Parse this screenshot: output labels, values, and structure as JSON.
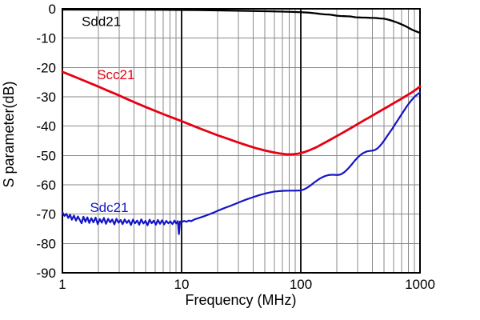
{
  "chart_data": {
    "type": "line",
    "x_scale": "log",
    "xlabel": "Frequency (MHz)",
    "ylabel": "S parameter(dB)",
    "xlim": [
      1,
      1000
    ],
    "ylim": [
      -90,
      0
    ],
    "x_ticks": [
      1,
      10,
      100,
      1000
    ],
    "x_tick_labels": [
      "1",
      "10",
      "100",
      "1000"
    ],
    "y_ticks": [
      0,
      -10,
      -20,
      -30,
      -40,
      -50,
      -60,
      -70,
      -80,
      -90
    ],
    "y_tick_labels": [
      "0",
      "-10",
      "-20",
      "-30",
      "-40",
      "-50",
      "-60",
      "-70",
      "-80",
      "-90"
    ],
    "grid": {
      "minor_color": "#8a8a8a",
      "major_color": "#1a1a1a",
      "frame_color": "#000000",
      "major_vertical_at": [
        10,
        100
      ]
    },
    "legend_position": "inline-labels",
    "series": [
      {
        "name": "Sdd21",
        "color": "#000000",
        "stroke_width": 2.3,
        "label_anchor": {
          "f": 1.45,
          "db": -4.2
        },
        "points": [
          [
            1,
            -0.25
          ],
          [
            2,
            -0.3
          ],
          [
            4,
            -0.3
          ],
          [
            7,
            -0.35
          ],
          [
            10,
            -0.4
          ],
          [
            14,
            -0.45
          ],
          [
            20,
            -0.55
          ],
          [
            28,
            -0.65
          ],
          [
            40,
            -0.75
          ],
          [
            55,
            -0.85
          ],
          [
            70,
            -0.95
          ],
          [
            85,
            -1.05
          ],
          [
            100,
            -1.15
          ],
          [
            110,
            -1.25
          ],
          [
            120,
            -1.35
          ],
          [
            130,
            -1.5
          ],
          [
            140,
            -1.65
          ],
          [
            150,
            -1.8
          ],
          [
            160,
            -1.9
          ],
          [
            170,
            -1.95
          ],
          [
            180,
            -2.05
          ],
          [
            190,
            -2.2
          ],
          [
            200,
            -2.35
          ],
          [
            215,
            -2.45
          ],
          [
            230,
            -2.5
          ],
          [
            245,
            -2.55
          ],
          [
            260,
            -2.6
          ],
          [
            275,
            -2.75
          ],
          [
            290,
            -2.9
          ],
          [
            310,
            -2.95
          ],
          [
            330,
            -3.0
          ],
          [
            350,
            -3.0
          ],
          [
            370,
            -3.05
          ],
          [
            390,
            -3.1
          ],
          [
            410,
            -3.1
          ],
          [
            430,
            -3.15
          ],
          [
            450,
            -3.25
          ],
          [
            470,
            -3.3
          ],
          [
            490,
            -3.35
          ],
          [
            510,
            -3.45
          ],
          [
            530,
            -3.6
          ],
          [
            560,
            -3.85
          ],
          [
            590,
            -4.15
          ],
          [
            620,
            -4.45
          ],
          [
            660,
            -4.85
          ],
          [
            700,
            -5.3
          ],
          [
            740,
            -5.75
          ],
          [
            780,
            -6.2
          ],
          [
            820,
            -6.7
          ],
          [
            860,
            -7.15
          ],
          [
            900,
            -7.5
          ],
          [
            950,
            -7.85
          ],
          [
            1000,
            -8.2
          ]
        ]
      },
      {
        "name": "Scc21",
        "color": "#e60012",
        "stroke_width": 2.8,
        "label_anchor": {
          "f": 1.95,
          "db": -22.3
        },
        "points": [
          [
            1,
            -21.5
          ],
          [
            1.2,
            -22.8
          ],
          [
            1.4,
            -23.9
          ],
          [
            1.7,
            -25.3
          ],
          [
            2,
            -26.5
          ],
          [
            2.4,
            -27.9
          ],
          [
            2.9,
            -29.3
          ],
          [
            3.5,
            -30.8
          ],
          [
            4.2,
            -32.2
          ],
          [
            5,
            -33.5
          ],
          [
            6,
            -34.8
          ],
          [
            7,
            -35.9
          ],
          [
            8.5,
            -37.2
          ],
          [
            10,
            -38.3
          ],
          [
            12,
            -39.6
          ],
          [
            14,
            -40.7
          ],
          [
            17,
            -42.0
          ],
          [
            20,
            -43.1
          ],
          [
            24,
            -44.2
          ],
          [
            29,
            -45.4
          ],
          [
            35,
            -46.5
          ],
          [
            42,
            -47.5
          ],
          [
            50,
            -48.3
          ],
          [
            58,
            -48.9
          ],
          [
            66,
            -49.3
          ],
          [
            75,
            -49.6
          ],
          [
            85,
            -49.6
          ],
          [
            95,
            -49.4
          ],
          [
            100,
            -49.2
          ],
          [
            110,
            -48.7
          ],
          [
            120,
            -48.1
          ],
          [
            135,
            -47.2
          ],
          [
            150,
            -46.2
          ],
          [
            170,
            -45.0
          ],
          [
            190,
            -43.9
          ],
          [
            215,
            -42.7
          ],
          [
            240,
            -41.6
          ],
          [
            270,
            -40.4
          ],
          [
            300,
            -39.3
          ],
          [
            340,
            -38.0
          ],
          [
            380,
            -36.9
          ],
          [
            430,
            -35.6
          ],
          [
            480,
            -34.5
          ],
          [
            540,
            -33.3
          ],
          [
            600,
            -32.2
          ],
          [
            670,
            -31.1
          ],
          [
            750,
            -29.9
          ],
          [
            840,
            -28.7
          ],
          [
            920,
            -27.6
          ],
          [
            1000,
            -26.5
          ]
        ]
      },
      {
        "name": "Sdc21",
        "color": "#1414c8",
        "stroke_width": 2.2,
        "label_anchor": {
          "f": 1.7,
          "db": -67.6
        },
        "points": [
          [
            1.0,
            -69.3
          ],
          [
            1.04,
            -70.6
          ],
          [
            1.08,
            -69.9
          ],
          [
            1.12,
            -71.3
          ],
          [
            1.16,
            -70.2
          ],
          [
            1.2,
            -71.9
          ],
          [
            1.25,
            -70.5
          ],
          [
            1.3,
            -72.2
          ],
          [
            1.35,
            -70.8
          ],
          [
            1.4,
            -72.0
          ],
          [
            1.45,
            -73.1
          ],
          [
            1.5,
            -70.9
          ],
          [
            1.56,
            -72.6
          ],
          [
            1.62,
            -71.1
          ],
          [
            1.68,
            -73.0
          ],
          [
            1.75,
            -71.4
          ],
          [
            1.82,
            -72.8
          ],
          [
            1.9,
            -71.2
          ],
          [
            1.98,
            -73.4
          ],
          [
            2.06,
            -71.7
          ],
          [
            2.14,
            -72.9
          ],
          [
            2.23,
            -71.3
          ],
          [
            2.32,
            -73.3
          ],
          [
            2.42,
            -71.6
          ],
          [
            2.52,
            -72.8
          ],
          [
            2.62,
            -71.8
          ],
          [
            2.73,
            -73.5
          ],
          [
            2.84,
            -71.6
          ],
          [
            2.96,
            -72.9
          ],
          [
            3.08,
            -72.0
          ],
          [
            3.2,
            -73.4
          ],
          [
            3.33,
            -71.8
          ],
          [
            3.47,
            -73.0
          ],
          [
            3.61,
            -72.1
          ],
          [
            3.76,
            -73.7
          ],
          [
            3.91,
            -71.9
          ],
          [
            4.07,
            -73.1
          ],
          [
            4.24,
            -72.2
          ],
          [
            4.41,
            -73.6
          ],
          [
            4.59,
            -71.8
          ],
          [
            4.78,
            -73.2
          ],
          [
            4.98,
            -72.3
          ],
          [
            5.18,
            -73.8
          ],
          [
            5.39,
            -71.9
          ],
          [
            5.61,
            -73.1
          ],
          [
            5.84,
            -72.2
          ],
          [
            6.08,
            -73.6
          ],
          [
            6.33,
            -72.0
          ],
          [
            6.59,
            -73.3
          ],
          [
            6.86,
            -72.1
          ],
          [
            7.14,
            -73.5
          ],
          [
            7.43,
            -72.3
          ],
          [
            7.74,
            -73.1
          ],
          [
            8.05,
            -72.5
          ],
          [
            8.38,
            -73.4
          ],
          [
            8.72,
            -72.2
          ],
          [
            9.0,
            -73.2
          ],
          [
            9.3,
            -72.4
          ],
          [
            9.5,
            -76.8
          ],
          [
            9.7,
            -72.5
          ],
          [
            10.0,
            -72.7
          ],
          [
            10.5,
            -72.3
          ],
          [
            11,
            -72.6
          ],
          [
            11.5,
            -72.2
          ],
          [
            12,
            -72.4
          ],
          [
            13,
            -71.7
          ],
          [
            14,
            -71.3
          ],
          [
            15,
            -70.9
          ],
          [
            16,
            -70.5
          ],
          [
            17,
            -70.1
          ],
          [
            18.5,
            -69.5
          ],
          [
            20,
            -68.9
          ],
          [
            22,
            -68.2
          ],
          [
            24,
            -67.6
          ],
          [
            26,
            -67.1
          ],
          [
            29,
            -66.3
          ],
          [
            32,
            -65.6
          ],
          [
            35,
            -65.0
          ],
          [
            38,
            -64.5
          ],
          [
            42,
            -63.9
          ],
          [
            46,
            -63.4
          ],
          [
            50,
            -63.0
          ],
          [
            55,
            -62.6
          ],
          [
            60,
            -62.3
          ],
          [
            66,
            -62.15
          ],
          [
            72,
            -62.05
          ],
          [
            80,
            -62.0
          ],
          [
            88,
            -62.0
          ],
          [
            96,
            -61.95
          ],
          [
            100,
            -61.9
          ],
          [
            106,
            -61.6
          ],
          [
            113,
            -61.0
          ],
          [
            120,
            -60.3
          ],
          [
            128,
            -59.4
          ],
          [
            136,
            -58.6
          ],
          [
            144,
            -57.9
          ],
          [
            152,
            -57.4
          ],
          [
            160,
            -57.0
          ],
          [
            170,
            -56.7
          ],
          [
            180,
            -56.6
          ],
          [
            190,
            -56.6
          ],
          [
            200,
            -56.65
          ],
          [
            210,
            -56.6
          ],
          [
            220,
            -56.3
          ],
          [
            232,
            -55.7
          ],
          [
            245,
            -54.8
          ],
          [
            258,
            -53.8
          ],
          [
            272,
            -52.7
          ],
          [
            286,
            -51.6
          ],
          [
            300,
            -50.7
          ],
          [
            315,
            -49.9
          ],
          [
            330,
            -49.3
          ],
          [
            345,
            -48.9
          ],
          [
            360,
            -48.6
          ],
          [
            375,
            -48.5
          ],
          [
            390,
            -48.4
          ],
          [
            405,
            -48.3
          ],
          [
            420,
            -48.1
          ],
          [
            440,
            -47.6
          ],
          [
            460,
            -46.8
          ],
          [
            480,
            -45.9
          ],
          [
            505,
            -44.7
          ],
          [
            530,
            -43.4
          ],
          [
            560,
            -42.0
          ],
          [
            590,
            -40.7
          ],
          [
            620,
            -39.3
          ],
          [
            660,
            -37.6
          ],
          [
            700,
            -36.0
          ],
          [
            740,
            -34.5
          ],
          [
            780,
            -33.1
          ],
          [
            820,
            -31.9
          ],
          [
            860,
            -30.9
          ],
          [
            900,
            -30.0
          ],
          [
            950,
            -29.2
          ],
          [
            1000,
            -28.5
          ]
        ]
      }
    ]
  }
}
